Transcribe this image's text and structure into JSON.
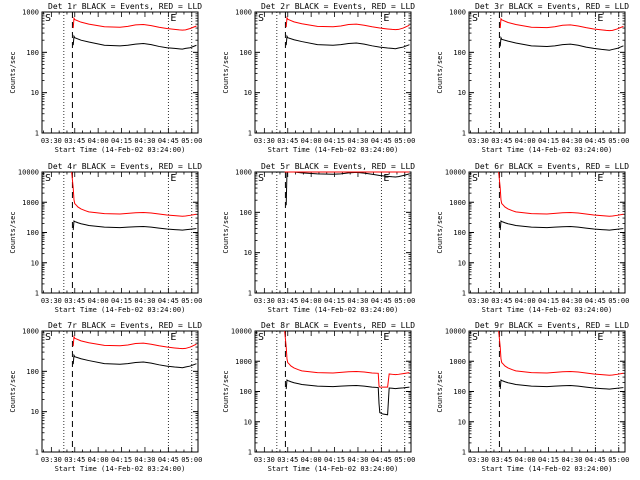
{
  "figure": {
    "type": "multi-panel line plot",
    "x_tick_labels": [
      "03:30",
      "03:45",
      "04:00",
      "04:15",
      "04:30",
      "04:45",
      "05:00"
    ],
    "y_tick_labels_10k": [
      "1",
      "10",
      "100",
      "1000",
      "10000"
    ],
    "y_tick_labels_1k": [
      "1",
      "10",
      "100",
      "1000"
    ],
    "xlabel": "Start Time (14-Feb-02 03:24:00)",
    "ylabel": "Counts/sec",
    "corner_left": "S",
    "corner_right": "E",
    "colors": {
      "events": "#000000",
      "lld": "#ff0000",
      "frame": "#000000"
    }
  },
  "chart_data": [
    {
      "type": "line",
      "title": "Det 1r BLACK = Events, RED = LLD",
      "xlabel": "Start Time (14-Feb-02 03:24:00)",
      "ylabel": "Counts/sec",
      "x_unit": "minutes since 03:24:00",
      "xlim": [
        0,
        100
      ],
      "ylim": [
        1,
        1000
      ],
      "yscale": "log",
      "x": [
        19,
        20,
        20.5,
        21,
        25,
        30,
        40,
        50,
        55,
        60,
        65,
        70,
        75,
        80,
        85,
        88,
        90,
        92,
        95,
        99
      ],
      "series": [
        {
          "name": "BLACK = Events",
          "color": "#000000",
          "values": [
            null,
            150,
            250,
            230,
            200,
            180,
            150,
            145,
            150,
            160,
            165,
            155,
            140,
            130,
            125,
            122,
            120,
            125,
            130,
            150
          ]
        },
        {
          "name": "RED = LLD",
          "color": "#ff0000",
          "values": [
            null,
            400,
            700,
            650,
            560,
            500,
            430,
            420,
            440,
            480,
            490,
            460,
            420,
            390,
            370,
            360,
            355,
            360,
            390,
            450
          ]
        }
      ],
      "vlines_dotted": [
        14,
        81,
        96
      ],
      "vlines_dashed": [
        19.5
      ]
    },
    {
      "type": "line",
      "title": "Det 2r BLACK = Events, RED = LLD",
      "xlabel": "Start Time (14-Feb-02 03:24:00)",
      "ylabel": "Counts/sec",
      "x_unit": "minutes since 03:24:00",
      "xlim": [
        0,
        100
      ],
      "ylim": [
        1,
        1000
      ],
      "yscale": "log",
      "x": [
        19,
        20,
        20.5,
        21,
        25,
        30,
        40,
        50,
        55,
        60,
        65,
        70,
        75,
        80,
        85,
        88,
        90,
        92,
        95,
        99
      ],
      "series": [
        {
          "name": "BLACK = Events",
          "color": "#000000",
          "values": [
            null,
            150,
            250,
            230,
            205,
            185,
            155,
            150,
            155,
            165,
            170,
            160,
            145,
            135,
            128,
            125,
            123,
            128,
            135,
            155
          ]
        },
        {
          "name": "RED = LLD",
          "color": "#ff0000",
          "values": [
            null,
            420,
            720,
            660,
            570,
            510,
            440,
            430,
            450,
            490,
            500,
            470,
            430,
            400,
            380,
            370,
            365,
            370,
            400,
            470
          ]
        }
      ],
      "vlines_dotted": [
        14,
        81,
        96
      ],
      "vlines_dashed": [
        19.5
      ]
    },
    {
      "type": "line",
      "title": "Det 3r BLACK = Events, RED = LLD",
      "xlabel": "Start Time (14-Feb-02 03:24:00)",
      "ylabel": "Counts/sec",
      "x_unit": "minutes since 03:24:00",
      "xlim": [
        0,
        100
      ],
      "ylim": [
        1,
        1000
      ],
      "yscale": "log",
      "x": [
        19,
        20,
        20.5,
        21,
        25,
        30,
        40,
        50,
        55,
        60,
        65,
        70,
        75,
        80,
        85,
        88,
        90,
        92,
        95,
        99
      ],
      "series": [
        {
          "name": "BLACK = Events",
          "color": "#000000",
          "values": [
            null,
            140,
            230,
            210,
            190,
            170,
            145,
            140,
            145,
            155,
            160,
            150,
            135,
            125,
            118,
            115,
            113,
            118,
            125,
            145
          ]
        },
        {
          "name": "RED = LLD",
          "color": "#ff0000",
          "values": [
            null,
            400,
            680,
            640,
            550,
            490,
            420,
            410,
            430,
            470,
            480,
            450,
            410,
            380,
            360,
            350,
            345,
            350,
            380,
            440
          ]
        }
      ],
      "vlines_dotted": [
        14,
        81,
        96
      ],
      "vlines_dashed": [
        19.5
      ]
    },
    {
      "type": "line",
      "title": "Det 4r BLACK = Events, RED = LLD",
      "xlabel": "Start Time (14-Feb-02 03:24:00)",
      "ylabel": "Counts/sec",
      "x_unit": "minutes since 03:24:00",
      "xlim": [
        0,
        100
      ],
      "ylim": [
        1,
        10000
      ],
      "yscale": "log",
      "x": [
        19,
        20,
        20.5,
        21,
        22,
        23,
        25,
        28,
        30,
        40,
        50,
        55,
        60,
        65,
        70,
        75,
        80,
        85,
        88,
        90,
        92,
        95,
        99
      ],
      "series": [
        {
          "name": "BLACK = Events",
          "color": "#000000",
          "values": [
            null,
            120,
            240,
            230,
            220,
            210,
            195,
            180,
            170,
            150,
            145,
            150,
            155,
            158,
            150,
            140,
            130,
            125,
            122,
            120,
            123,
            128,
            135
          ]
        },
        {
          "name": "RED = LLD",
          "color": "#ff0000",
          "values": [
            10000,
            3000,
            1200,
            900,
            800,
            700,
            600,
            520,
            480,
            420,
            410,
            430,
            450,
            460,
            440,
            410,
            380,
            360,
            350,
            345,
            350,
            370,
            400
          ]
        }
      ],
      "vlines_dotted": [
        14,
        81,
        96
      ],
      "vlines_dashed": [
        19.5
      ]
    },
    {
      "type": "line",
      "title": "Det 5r BLACK = Events, RED = LLD",
      "xlabel": "Start Time (14-Feb-02 03:24:00)",
      "ylabel": "Counts/sec",
      "x_unit": "minutes since 03:24:00",
      "xlim": [
        0,
        100
      ],
      "ylim": [
        1,
        1000
      ],
      "yscale": "log",
      "x": [
        19,
        20,
        20.5,
        21,
        25,
        30,
        40,
        50,
        55,
        60,
        65,
        70,
        75,
        80,
        85,
        88,
        90,
        92,
        95,
        99
      ],
      "series": [
        {
          "name": "BLACK = Events",
          "color": "#000000",
          "values": [
            null,
            150,
            1200,
            1100,
            1000,
            950,
            900,
            880,
            900,
            950,
            980,
            940,
            880,
            820,
            780,
            760,
            750,
            770,
            820,
            900
          ]
        },
        {
          "name": "RED = LLD",
          "color": "#ff0000",
          "values": [
            1000,
            1000,
            1000,
            1000,
            1000,
            1000,
            1000,
            1000,
            1000,
            1000,
            1000,
            1000,
            1000,
            1000,
            1000,
            1000,
            1000,
            1000,
            1000,
            1000
          ]
        }
      ],
      "vlines_dotted": [
        14,
        81,
        96
      ],
      "vlines_dashed": [
        19.5
      ]
    },
    {
      "type": "line",
      "title": "Det 6r BLACK = Events, RED = LLD",
      "xlabel": "Start Time (14-Feb-02 03:24:00)",
      "ylabel": "Counts/sec",
      "x_unit": "minutes since 03:24:00",
      "xlim": [
        0,
        100
      ],
      "ylim": [
        1,
        10000
      ],
      "yscale": "log",
      "x": [
        19,
        20,
        20.5,
        21,
        22,
        23,
        25,
        28,
        30,
        40,
        50,
        55,
        60,
        65,
        70,
        75,
        80,
        85,
        88,
        90,
        92,
        95,
        99
      ],
      "series": [
        {
          "name": "BLACK = Events",
          "color": "#000000",
          "values": [
            null,
            120,
            240,
            230,
            220,
            210,
            195,
            180,
            170,
            150,
            145,
            150,
            155,
            158,
            150,
            140,
            130,
            125,
            122,
            120,
            123,
            128,
            135
          ]
        },
        {
          "name": "RED = LLD",
          "color": "#ff0000",
          "values": [
            10000,
            3000,
            1200,
            900,
            800,
            700,
            600,
            520,
            480,
            420,
            410,
            430,
            450,
            460,
            440,
            410,
            380,
            360,
            350,
            345,
            350,
            370,
            400
          ]
        }
      ],
      "vlines_dotted": [
        14,
        81,
        96
      ],
      "vlines_dashed": [
        19.5
      ]
    },
    {
      "type": "line",
      "title": "Det 7r BLACK = Events, RED = LLD",
      "xlabel": "Start Time (14-Feb-02 03:24:00)",
      "ylabel": "Counts/sec",
      "x_unit": "minutes since 03:24:00",
      "xlim": [
        0,
        100
      ],
      "ylim": [
        1,
        1000
      ],
      "yscale": "log",
      "x": [
        19,
        20,
        20.5,
        21,
        25,
        30,
        40,
        50,
        55,
        60,
        65,
        70,
        75,
        80,
        85,
        88,
        90,
        92,
        95,
        99
      ],
      "series": [
        {
          "name": "BLACK = Events",
          "color": "#000000",
          "values": [
            null,
            150,
            250,
            230,
            205,
            185,
            155,
            150,
            155,
            165,
            170,
            160,
            145,
            135,
            128,
            125,
            123,
            128,
            135,
            155
          ]
        },
        {
          "name": "RED = LLD",
          "color": "#ff0000",
          "values": [
            null,
            420,
            720,
            660,
            570,
            510,
            440,
            430,
            450,
            490,
            500,
            470,
            430,
            400,
            380,
            370,
            365,
            370,
            400,
            470
          ]
        }
      ],
      "vlines_dotted": [
        14,
        81,
        96
      ],
      "vlines_dashed": [
        19.5
      ]
    },
    {
      "type": "line",
      "title": "Det 8r BLACK = Events, RED = LLD",
      "xlabel": "Start Time (14-Feb-02 03:24:00)",
      "ylabel": "Counts/sec",
      "x_unit": "minutes since 03:24:00",
      "xlim": [
        0,
        100
      ],
      "ylim": [
        1,
        10000
      ],
      "yscale": "log",
      "x": [
        19,
        20,
        20.5,
        21,
        22,
        23,
        25,
        28,
        30,
        40,
        50,
        55,
        60,
        65,
        70,
        75,
        79,
        79.5,
        80,
        82,
        85,
        86,
        88,
        90,
        92,
        95,
        99
      ],
      "series": [
        {
          "name": "BLACK = Events",
          "color": "#000000",
          "values": [
            null,
            120,
            240,
            230,
            220,
            210,
            195,
            180,
            170,
            150,
            145,
            150,
            155,
            158,
            150,
            140,
            135,
            40,
            20,
            18,
            17,
            130,
            128,
            125,
            128,
            132,
            140
          ]
        },
        {
          "name": "RED = LLD",
          "color": "#ff0000",
          "values": [
            10000,
            3000,
            1200,
            900,
            800,
            700,
            600,
            520,
            480,
            420,
            410,
            430,
            450,
            460,
            440,
            410,
            400,
            150,
            140,
            140,
            140,
            380,
            370,
            360,
            370,
            390,
            420
          ]
        }
      ],
      "vlines_dotted": [
        14,
        81,
        96
      ],
      "vlines_dashed": [
        19.5
      ]
    },
    {
      "type": "line",
      "title": "Det 9r BLACK = Events, RED = LLD",
      "xlabel": "Start Time (14-Feb-02 03:24:00)",
      "ylabel": "Counts/sec",
      "x_unit": "minutes since 03:24:00",
      "xlim": [
        0,
        100
      ],
      "ylim": [
        1,
        10000
      ],
      "yscale": "log",
      "x": [
        19,
        20,
        20.5,
        21,
        22,
        23,
        25,
        28,
        30,
        40,
        50,
        55,
        60,
        65,
        70,
        75,
        80,
        85,
        88,
        90,
        92,
        95,
        99
      ],
      "series": [
        {
          "name": "BLACK = Events",
          "color": "#000000",
          "values": [
            null,
            120,
            240,
            230,
            220,
            210,
            195,
            180,
            170,
            150,
            145,
            150,
            155,
            158,
            150,
            140,
            130,
            125,
            122,
            120,
            123,
            128,
            135
          ]
        },
        {
          "name": "RED = LLD",
          "color": "#ff0000",
          "values": [
            10000,
            3000,
            1200,
            900,
            800,
            700,
            600,
            520,
            480,
            420,
            410,
            430,
            450,
            460,
            440,
            410,
            380,
            360,
            350,
            345,
            350,
            370,
            400
          ]
        }
      ],
      "vlines_dotted": [
        14,
        81,
        96
      ],
      "vlines_dashed": [
        19.5
      ]
    }
  ]
}
